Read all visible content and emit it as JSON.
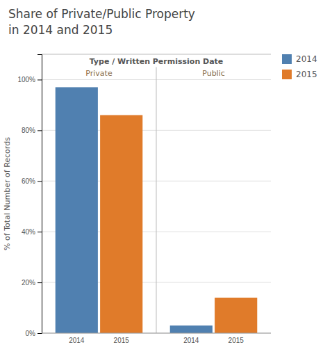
{
  "chart_data": {
    "type": "bar",
    "title": "Share of Private/Public Property",
    "subtitle": "in 2014 and 2015",
    "xlabel": "Type / Written Permission Date",
    "ylabel": "% of Total Number of Records",
    "categories": [
      "Private",
      "Public"
    ],
    "series": [
      {
        "name": "2014",
        "color": "#5080b0",
        "values": [
          97,
          3
        ]
      },
      {
        "name": "2015",
        "color": "#e07b2a",
        "values": [
          86,
          14
        ]
      }
    ],
    "ylim": [
      0,
      110
    ],
    "yticks": [
      {
        "value": 0,
        "label": "0%"
      },
      {
        "value": 20,
        "label": "20%"
      },
      {
        "value": 40,
        "label": "40%"
      },
      {
        "value": 60,
        "label": "60%"
      },
      {
        "value": 80,
        "label": "80%"
      },
      {
        "value": 100,
        "label": "100%"
      }
    ],
    "grid": true,
    "legend": "right"
  }
}
